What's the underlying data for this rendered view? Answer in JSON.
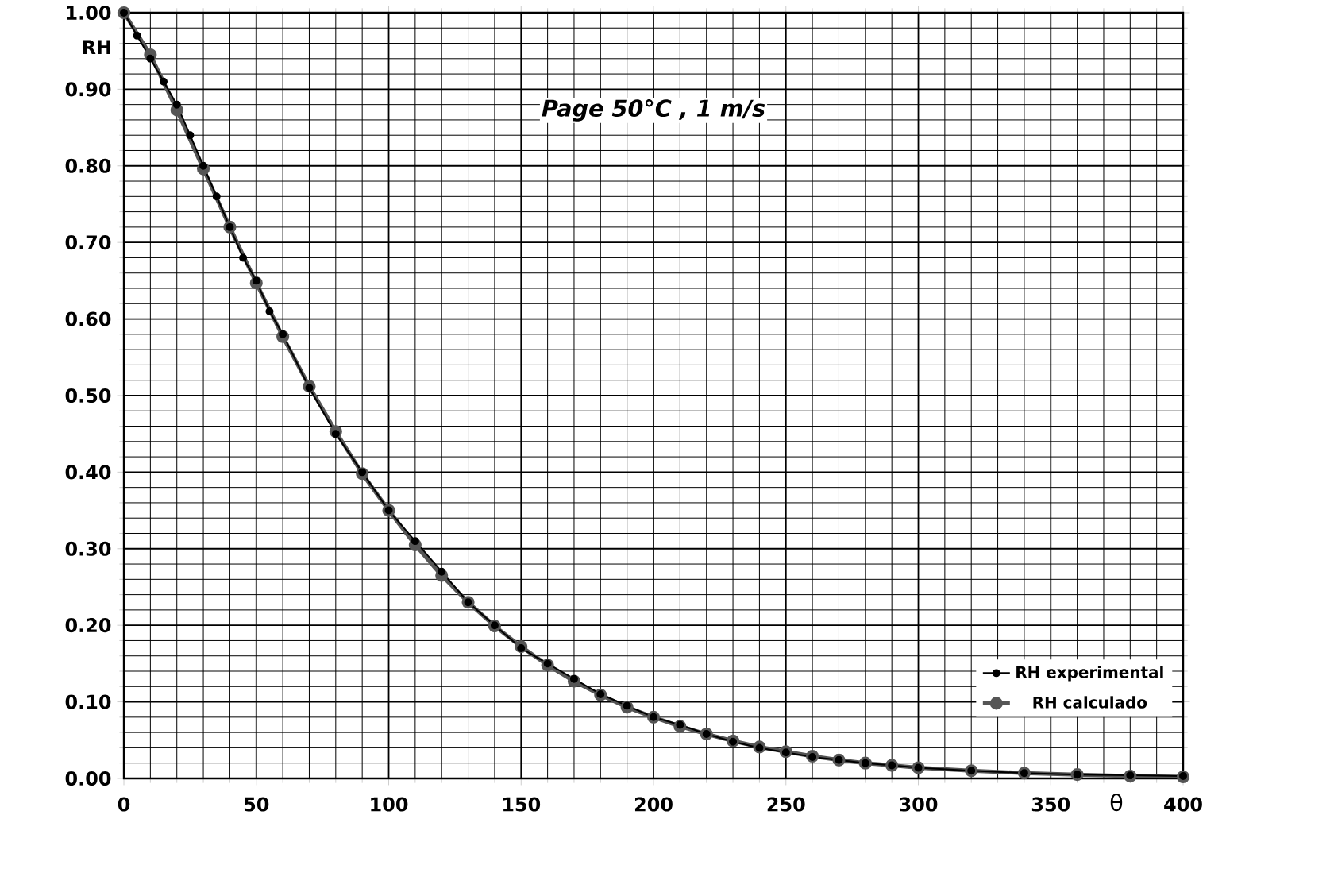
{
  "chart_data": {
    "type": "line",
    "title": "**Page 50°C , 1 m/s**",
    "xlabel": "θ",
    "ylabel": "RH",
    "xlim": [
      0,
      400
    ],
    "xticks": [
      0,
      50,
      100,
      150,
      200,
      250,
      300,
      350,
      400
    ],
    "ylim": [
      0,
      1
    ],
    "yticks": [
      {
        "value": 0,
        "label": "0.00"
      },
      {
        "value": 0.1,
        "label": "0.10"
      },
      {
        "value": 0.2,
        "label": "0.20"
      },
      {
        "value": 0.3,
        "label": "0.30"
      },
      {
        "value": 0.4,
        "label": "0.40"
      },
      {
        "value": 0.5,
        "label": "0.50"
      },
      {
        "value": 0.6,
        "label": "0.60"
      },
      {
        "value": 0.7,
        "label": "0.70"
      },
      {
        "value": 0.8,
        "label": "0.80"
      },
      {
        "value": 0.9,
        "label": "0.90"
      },
      {
        "value": 1,
        "label": "1.00"
      }
    ],
    "grid": true,
    "legend": "bottom right",
    "marker": "circle",
    "line_style": "solid",
    "series": [
      {
        "name": "RH experimental",
        "color": "#000000",
        "x": [
          0,
          5,
          10,
          15,
          20,
          25,
          30,
          35,
          40,
          45,
          50,
          55,
          60,
          70,
          80,
          90,
          100,
          110,
          120,
          130,
          140,
          150,
          160,
          170,
          180,
          190,
          200,
          210,
          220,
          230,
          240,
          250,
          260,
          270,
          280,
          290,
          300,
          320,
          340,
          360,
          380,
          400
        ],
        "values": [
          1.0,
          0.97,
          0.94,
          0.91,
          0.88,
          0.84,
          0.8,
          0.76,
          0.72,
          0.68,
          0.65,
          0.61,
          0.58,
          0.51,
          0.45,
          0.4,
          0.35,
          0.31,
          0.27,
          0.23,
          0.2,
          0.17,
          0.15,
          0.13,
          0.11,
          0.095,
          0.08,
          0.07,
          0.058,
          0.048,
          0.04,
          0.034,
          0.028,
          0.024,
          0.02,
          0.017,
          0.014,
          0.01,
          0.007,
          0.005,
          0.004,
          0.003
        ]
      },
      {
        "name": "RH calculado",
        "color": "#555555",
        "x": [
          0,
          10,
          20,
          30,
          40,
          50,
          60,
          70,
          80,
          90,
          100,
          110,
          120,
          130,
          140,
          150,
          160,
          170,
          180,
          190,
          200,
          210,
          220,
          230,
          240,
          250,
          260,
          270,
          280,
          290,
          300,
          320,
          340,
          360,
          380,
          400
        ],
        "values": [
          1.0,
          0.945,
          0.873,
          0.796,
          0.72,
          0.647,
          0.577,
          0.512,
          0.453,
          0.398,
          0.35,
          0.305,
          0.265,
          0.23,
          0.199,
          0.172,
          0.148,
          0.127,
          0.109,
          0.093,
          0.08,
          0.068,
          0.058,
          0.049,
          0.041,
          0.035,
          0.029,
          0.024,
          0.02,
          0.017,
          0.014,
          0.01,
          0.007,
          0.005,
          0.003,
          0.002
        ]
      }
    ]
  }
}
